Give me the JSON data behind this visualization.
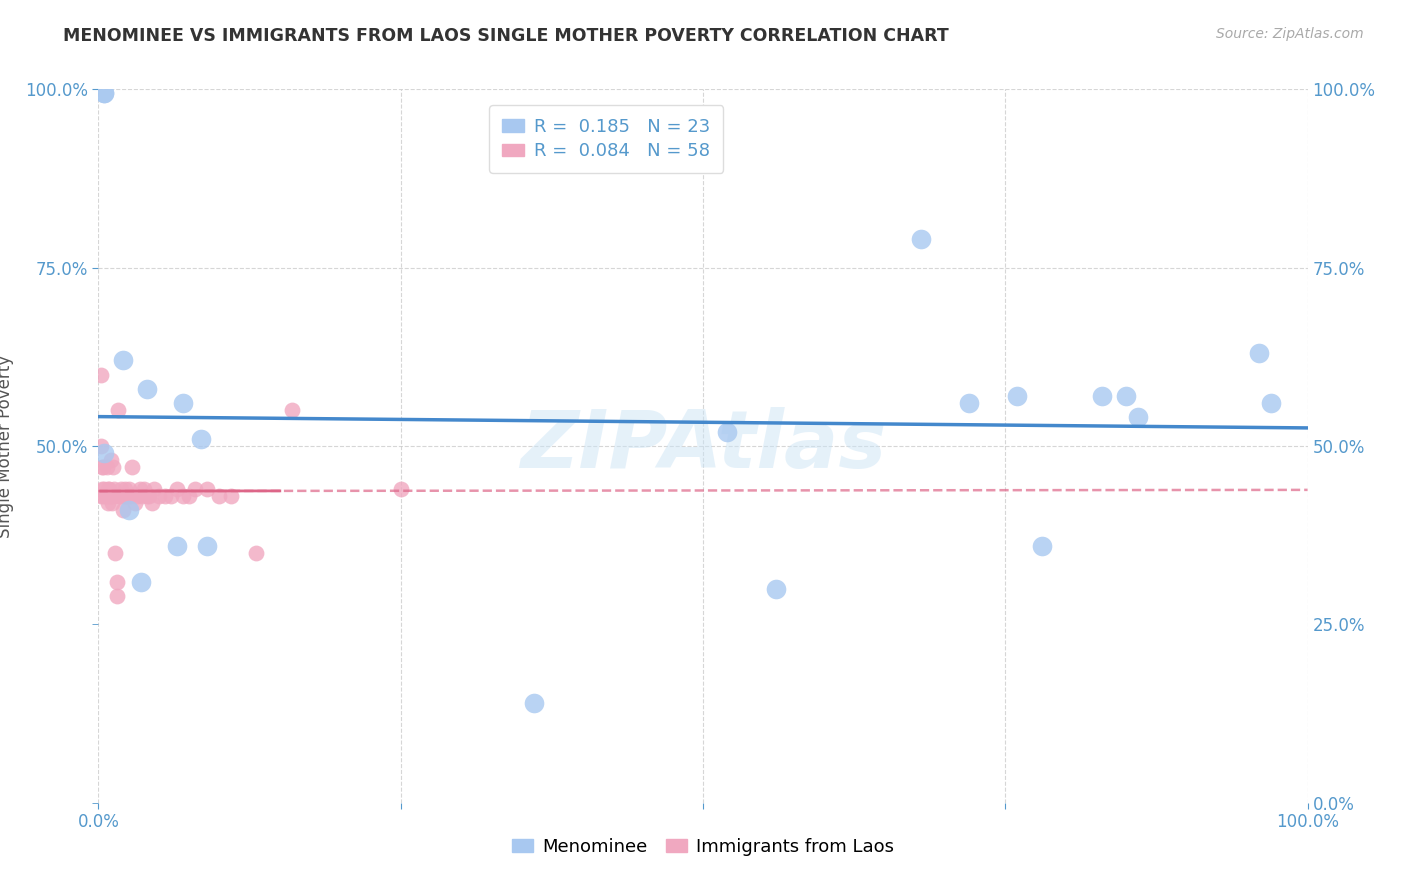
{
  "title": "MENOMINEE VS IMMIGRANTS FROM LAOS SINGLE MOTHER POVERTY CORRELATION CHART",
  "source": "Source: ZipAtlas.com",
  "ylabel": "Single Mother Poverty",
  "xlim": [
    0,
    1
  ],
  "ylim": [
    0,
    1
  ],
  "xticks": [
    0,
    0.25,
    0.5,
    0.75,
    1.0
  ],
  "xticklabels": [
    "0.0%",
    "",
    "",
    "",
    "100.0%"
  ],
  "yticks_left": [
    0.5,
    0.75,
    1.0
  ],
  "yticklabels_left": [
    "50.0%",
    "75.0%",
    "100.0%"
  ],
  "yticks_right": [
    0,
    0.25,
    0.5,
    0.75,
    1.0
  ],
  "yticklabels_right": [
    "0.0%",
    "25.0%",
    "50.0%",
    "75.0%",
    "100.0%"
  ],
  "menominee_color": "#a8c8f0",
  "immigrants_color": "#f0a8c0",
  "menominee_line_color": "#4488cc",
  "immigrants_line_color": "#dd6688",
  "menominee_R": 0.185,
  "menominee_N": 23,
  "immigrants_R": 0.084,
  "immigrants_N": 58,
  "watermark": "ZIPAtlas",
  "background_color": "#ffffff",
  "menominee_x": [
    0.005,
    0.005,
    0.02,
    0.04,
    0.005,
    0.07,
    0.085,
    0.09,
    0.52,
    0.68,
    0.72,
    0.76,
    0.78,
    0.83,
    0.85,
    0.86,
    0.96,
    0.97,
    0.36,
    0.065,
    0.025,
    0.035,
    0.56
  ],
  "menominee_y": [
    0.995,
    0.995,
    0.62,
    0.58,
    0.49,
    0.56,
    0.51,
    0.36,
    0.52,
    0.79,
    0.56,
    0.57,
    0.36,
    0.57,
    0.57,
    0.54,
    0.63,
    0.56,
    0.14,
    0.36,
    0.41,
    0.31,
    0.3
  ],
  "immigrants_x": [
    0.002,
    0.002,
    0.002,
    0.003,
    0.003,
    0.004,
    0.004,
    0.005,
    0.006,
    0.007,
    0.007,
    0.008,
    0.008,
    0.009,
    0.009,
    0.01,
    0.01,
    0.011,
    0.012,
    0.012,
    0.013,
    0.014,
    0.015,
    0.015,
    0.016,
    0.017,
    0.018,
    0.019,
    0.02,
    0.021,
    0.022,
    0.023,
    0.024,
    0.025,
    0.026,
    0.028,
    0.03,
    0.032,
    0.034,
    0.036,
    0.038,
    0.04,
    0.042,
    0.044,
    0.046,
    0.05,
    0.055,
    0.06,
    0.065,
    0.07,
    0.075,
    0.08,
    0.09,
    0.1,
    0.11,
    0.13,
    0.16,
    0.25
  ],
  "immigrants_y": [
    0.43,
    0.5,
    0.6,
    0.47,
    0.44,
    0.43,
    0.47,
    0.44,
    0.43,
    0.43,
    0.47,
    0.42,
    0.44,
    0.43,
    0.44,
    0.43,
    0.48,
    0.42,
    0.43,
    0.47,
    0.44,
    0.35,
    0.29,
    0.31,
    0.55,
    0.43,
    0.43,
    0.44,
    0.41,
    0.43,
    0.44,
    0.43,
    0.43,
    0.44,
    0.43,
    0.47,
    0.42,
    0.43,
    0.44,
    0.43,
    0.44,
    0.43,
    0.43,
    0.42,
    0.44,
    0.43,
    0.43,
    0.43,
    0.44,
    0.43,
    0.43,
    0.44,
    0.44,
    0.43,
    0.43,
    0.35,
    0.55,
    0.44
  ]
}
